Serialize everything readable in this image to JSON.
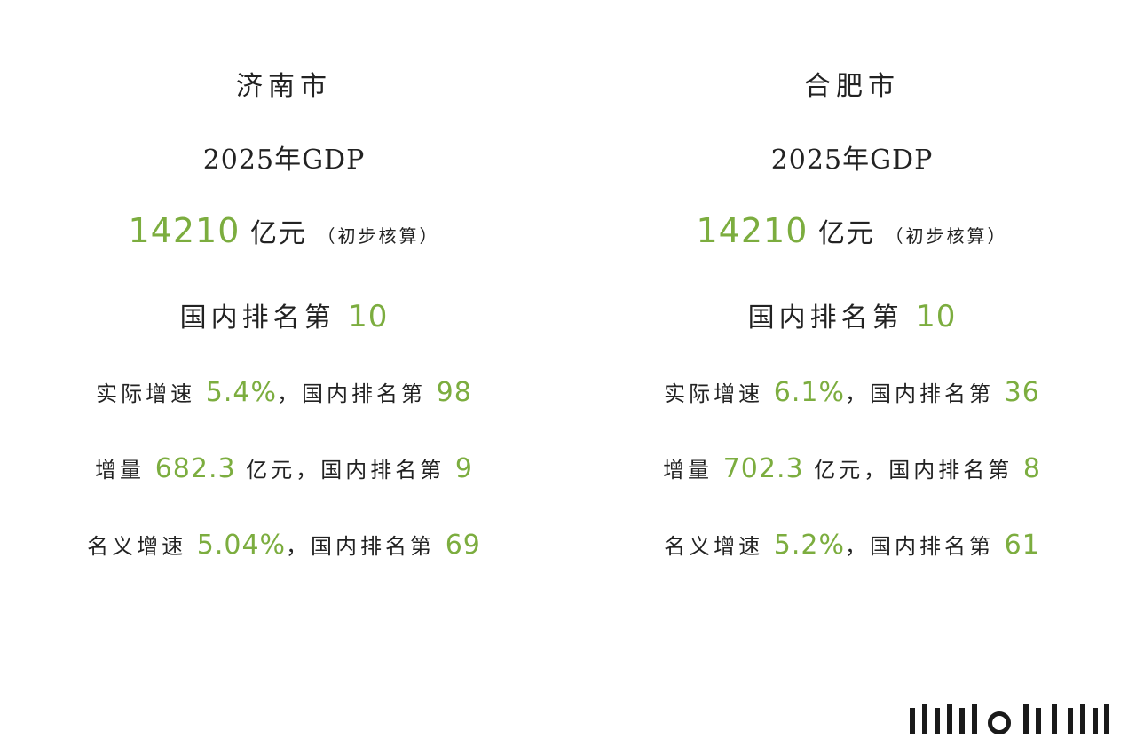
{
  "columns": [
    {
      "city": "济南市",
      "gdp_title": "2025年GDP",
      "gdp_value": "14210",
      "gdp_unit": "亿元",
      "gdp_note": "（初步核算）",
      "rank_prefix": "国内排名第",
      "rank_value": "10",
      "real_growth_label": "实际增速",
      "real_growth_value": "5.4%",
      "real_growth_sep": "，国内排名第",
      "real_growth_rank": "98",
      "increment_label": "增量",
      "increment_value": "682.3",
      "increment_unit": "亿元，国内排名第",
      "increment_rank": "9",
      "nominal_growth_label": "名义增速",
      "nominal_growth_value": "5.04%",
      "nominal_growth_sep": "，国内排名第",
      "nominal_growth_rank": "69"
    },
    {
      "city": "合肥市",
      "gdp_title": "2025年GDP",
      "gdp_value": "14210",
      "gdp_unit": "亿元",
      "gdp_note": "（初步核算）",
      "rank_prefix": "国内排名第",
      "rank_value": "10",
      "real_growth_label": "实际增速",
      "real_growth_value": "6.1%",
      "real_growth_sep": "，国内排名第",
      "real_growth_rank": "36",
      "increment_label": "增量",
      "increment_value": "702.3",
      "increment_unit": "亿元，国内排名第",
      "increment_rank": "8",
      "nominal_growth_label": "名义增速",
      "nominal_growth_value": "5.2%",
      "nominal_growth_sep": "，国内排名第",
      "nominal_growth_rank": "61"
    }
  ],
  "colors": {
    "text": "#222222",
    "accent": "#7cad3f",
    "background": "#ffffff"
  },
  "watermark_icon": "barcode-logo-icon"
}
